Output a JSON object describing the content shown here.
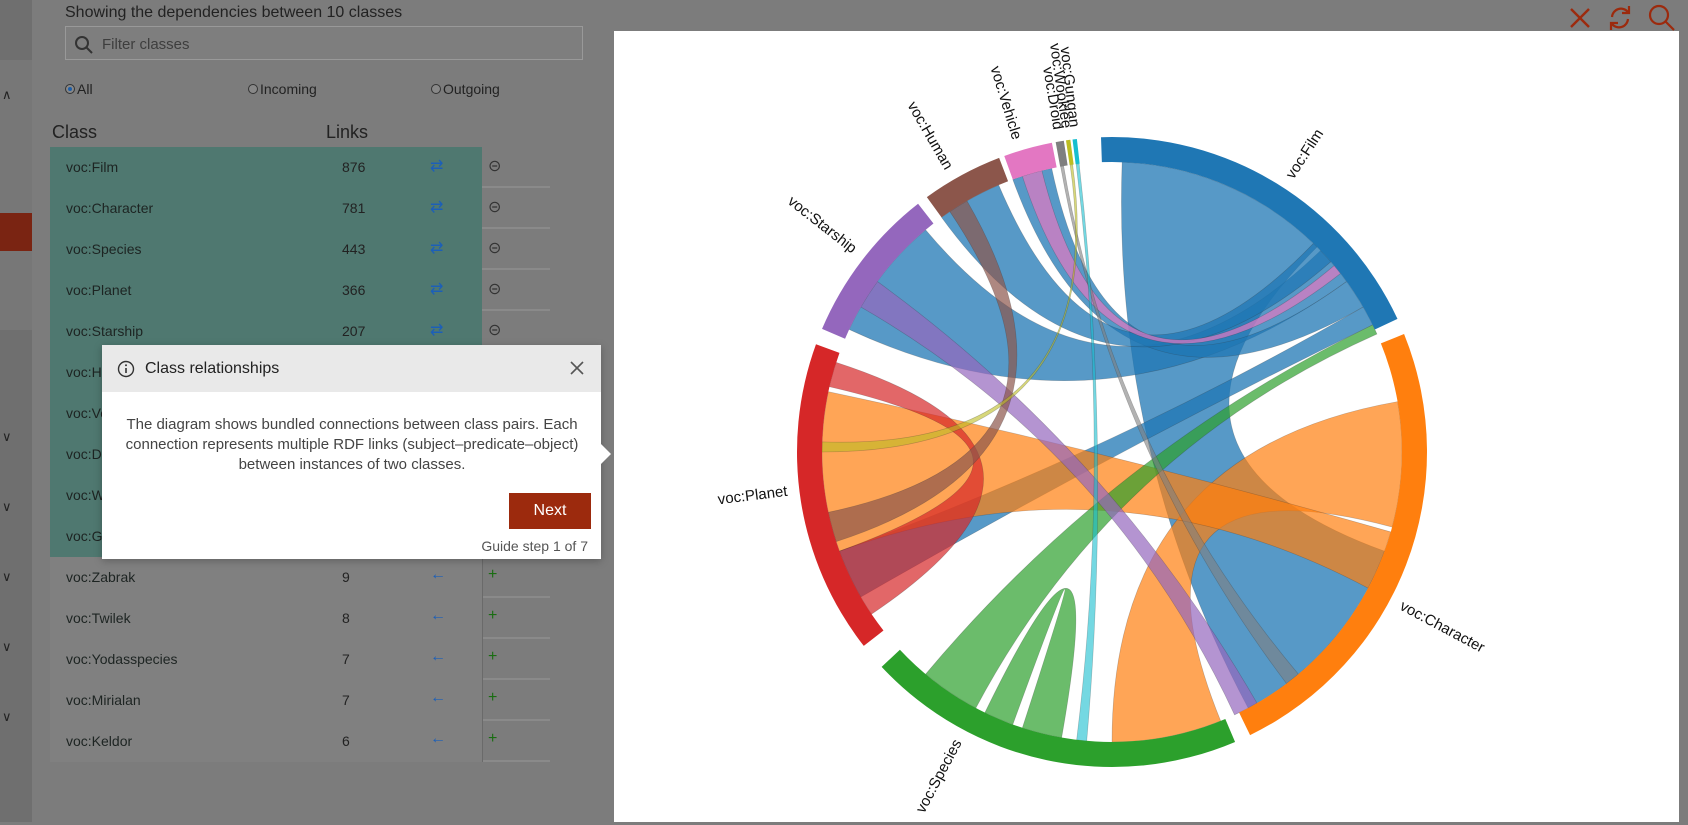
{
  "header": {
    "subtitle": "Showing the dependencies between 10 classes"
  },
  "filter": {
    "placeholder": "Filter classes",
    "icon": "search-icon"
  },
  "radios": [
    {
      "label": "All",
      "checked": true
    },
    {
      "label": "Incoming",
      "checked": false
    },
    {
      "label": "Outgoing",
      "checked": false
    }
  ],
  "table": {
    "columns": [
      "Class",
      "Links"
    ],
    "rows": [
      {
        "name": "voc:Film",
        "links": "876",
        "arrow": "⇄",
        "action": "⊝",
        "selected": true
      },
      {
        "name": "voc:Character",
        "links": "781",
        "arrow": "⇄",
        "action": "⊝",
        "selected": true
      },
      {
        "name": "voc:Species",
        "links": "443",
        "arrow": "⇄",
        "action": "⊝",
        "selected": true
      },
      {
        "name": "voc:Planet",
        "links": "366",
        "arrow": "⇄",
        "action": "⊝",
        "selected": true
      },
      {
        "name": "voc:Starship",
        "links": "207",
        "arrow": "⇄",
        "action": "⊝",
        "selected": true
      },
      {
        "name": "voc:Human",
        "links": "",
        "arrow": "⇄",
        "action": "⊝",
        "selected": true
      },
      {
        "name": "voc:Vehicle",
        "links": "",
        "arrow": "⇄",
        "action": "⊝",
        "selected": true
      },
      {
        "name": "voc:Droid",
        "links": "",
        "arrow": "⇄",
        "action": "⊝",
        "selected": true
      },
      {
        "name": "voc:Wookiee",
        "links": "",
        "arrow": "⇄",
        "action": "⊝",
        "selected": true
      },
      {
        "name": "voc:Gungan",
        "links": "",
        "arrow": "⇄",
        "action": "⊝",
        "selected": true
      },
      {
        "name": "voc:Zabrak",
        "links": "9",
        "arrow": "←",
        "action": "+",
        "selected": false
      },
      {
        "name": "voc:Twilek",
        "links": "8",
        "arrow": "←",
        "action": "+",
        "selected": false
      },
      {
        "name": "voc:Yodasspecies",
        "links": "7",
        "arrow": "←",
        "action": "+",
        "selected": false
      },
      {
        "name": "voc:Mirialan",
        "links": "7",
        "arrow": "←",
        "action": "+",
        "selected": false
      },
      {
        "name": "voc:Keldor",
        "links": "6",
        "arrow": "←",
        "action": "+",
        "selected": false
      }
    ]
  },
  "popup": {
    "title": "Class relationships",
    "body": "The diagram shows bundled connections between class pairs. Each connection represents multiple RDF links (subject–predicate–object) between instances of two classes.",
    "next_label": "Next",
    "step_label": "Guide step 1 of 7",
    "accent": "#9c2a0d"
  },
  "toolbar": {
    "icons": [
      "close-icon",
      "refresh-icon",
      "zoom-icon"
    ],
    "color": "#9c2a0d"
  },
  "chord": {
    "groups": [
      {
        "label": "voc:Film",
        "color": "#1f77b4"
      },
      {
        "label": "voc:Character",
        "color": "#ff7f0e"
      },
      {
        "label": "voc:Species",
        "color": "#2ca02c"
      },
      {
        "label": "voc:Planet",
        "color": "#d62728"
      },
      {
        "label": "voc:Starship",
        "color": "#9467bd"
      },
      {
        "label": "voc:Human",
        "color": "#8c564b"
      },
      {
        "label": "voc:Vehicle",
        "color": "#e377c2"
      },
      {
        "label": "voc:Droid",
        "color": "#7f7f7f"
      },
      {
        "label": "voc:Wookiee",
        "color": "#bcbd22"
      },
      {
        "label": "voc:Gungan",
        "color": "#17becf"
      }
    ]
  }
}
